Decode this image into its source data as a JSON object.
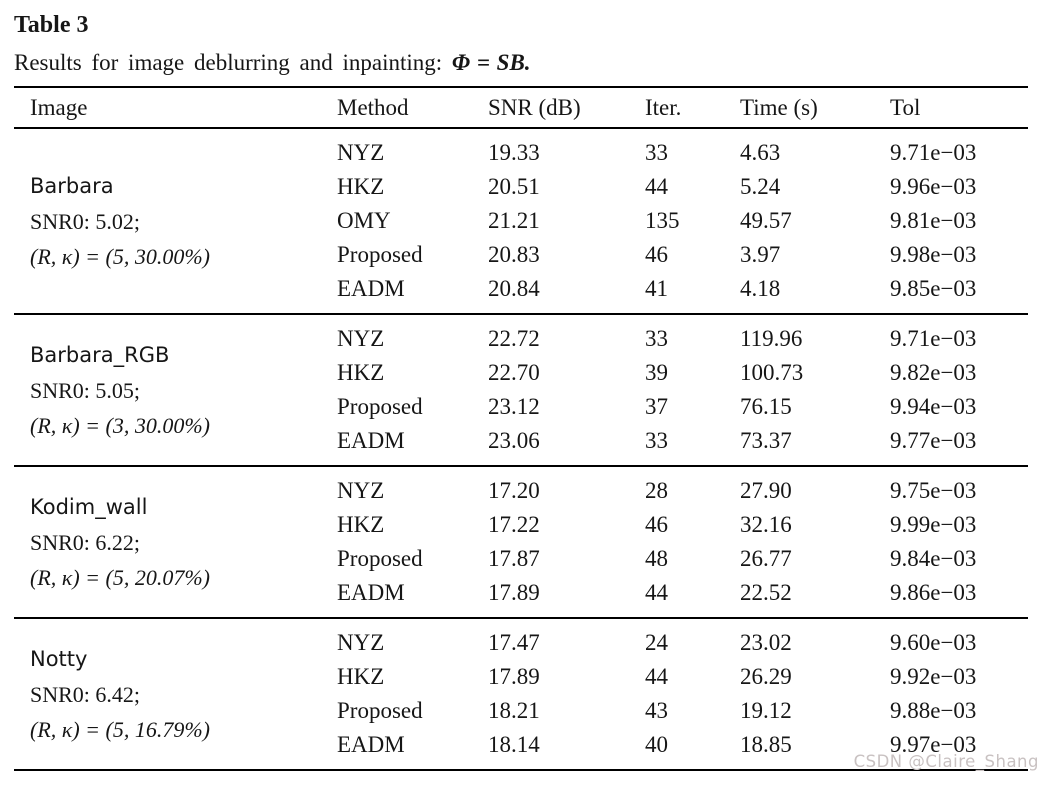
{
  "page": {
    "title": "Table 3",
    "subtitle_text": "Results for image deblurring and inpainting:",
    "subtitle_math": "Φ = SB.",
    "watermark": "CSDN @Claire_Shang"
  },
  "colors": {
    "text": "#161616",
    "rule": "#000000",
    "watermark": "#c9c2c2"
  },
  "table": {
    "columns": [
      "Image",
      "Method",
      "SNR (dB)",
      "Iter.",
      "Time (s)",
      "Tol"
    ],
    "groups": [
      {
        "image": "Barbara",
        "snr0": "SNR0: 5.02;",
        "rk": "(R, κ) = (5, 30.00%)",
        "rows": [
          {
            "method": "NYZ",
            "snr": "19.33",
            "iter": "33",
            "time": "4.63",
            "tol": "9.71e−03"
          },
          {
            "method": "HKZ",
            "snr": "20.51",
            "iter": "44",
            "time": "5.24",
            "tol": "9.96e−03"
          },
          {
            "method": "OMY",
            "snr": "21.21",
            "iter": "135",
            "time": "49.57",
            "tol": "9.81e−03"
          },
          {
            "method": "Proposed",
            "snr": "20.83",
            "iter": "46",
            "time": "3.97",
            "tol": "9.98e−03"
          },
          {
            "method": "EADM",
            "snr": "20.84",
            "iter": "41",
            "time": "4.18",
            "tol": "9.85e−03"
          }
        ]
      },
      {
        "image": "Barbara_RGB",
        "snr0": "SNR0: 5.05;",
        "rk": "(R, κ) = (3, 30.00%)",
        "rows": [
          {
            "method": "NYZ",
            "snr": "22.72",
            "iter": "33",
            "time": "119.96",
            "tol": "9.71e−03"
          },
          {
            "method": "HKZ",
            "snr": "22.70",
            "iter": "39",
            "time": "100.73",
            "tol": "9.82e−03"
          },
          {
            "method": "Proposed",
            "snr": "23.12",
            "iter": "37",
            "time": "76.15",
            "tol": "9.94e−03"
          },
          {
            "method": "EADM",
            "snr": "23.06",
            "iter": "33",
            "time": "73.37",
            "tol": "9.77e−03"
          }
        ]
      },
      {
        "image": "Kodim_wall",
        "snr0": "SNR0: 6.22;",
        "rk": "(R, κ) = (5, 20.07%)",
        "rows": [
          {
            "method": "NYZ",
            "snr": "17.20",
            "iter": "28",
            "time": "27.90",
            "tol": "9.75e−03"
          },
          {
            "method": "HKZ",
            "snr": "17.22",
            "iter": "46",
            "time": "32.16",
            "tol": "9.99e−03"
          },
          {
            "method": "Proposed",
            "snr": "17.87",
            "iter": "48",
            "time": "26.77",
            "tol": "9.84e−03"
          },
          {
            "method": "EADM",
            "snr": "17.89",
            "iter": "44",
            "time": "22.52",
            "tol": "9.86e−03"
          }
        ]
      },
      {
        "image": "Notty",
        "snr0": "SNR0: 6.42;",
        "rk": "(R, κ) = (5, 16.79%)",
        "rows": [
          {
            "method": "NYZ",
            "snr": "17.47",
            "iter": "24",
            "time": "23.02",
            "tol": "9.60e−03"
          },
          {
            "method": "HKZ",
            "snr": "17.89",
            "iter": "44",
            "time": "26.29",
            "tol": "9.92e−03"
          },
          {
            "method": "Proposed",
            "snr": "18.21",
            "iter": "43",
            "time": "19.12",
            "tol": "9.88e−03"
          },
          {
            "method": "EADM",
            "snr": "18.14",
            "iter": "40",
            "time": "18.85",
            "tol": "9.97e−03"
          }
        ]
      }
    ]
  }
}
